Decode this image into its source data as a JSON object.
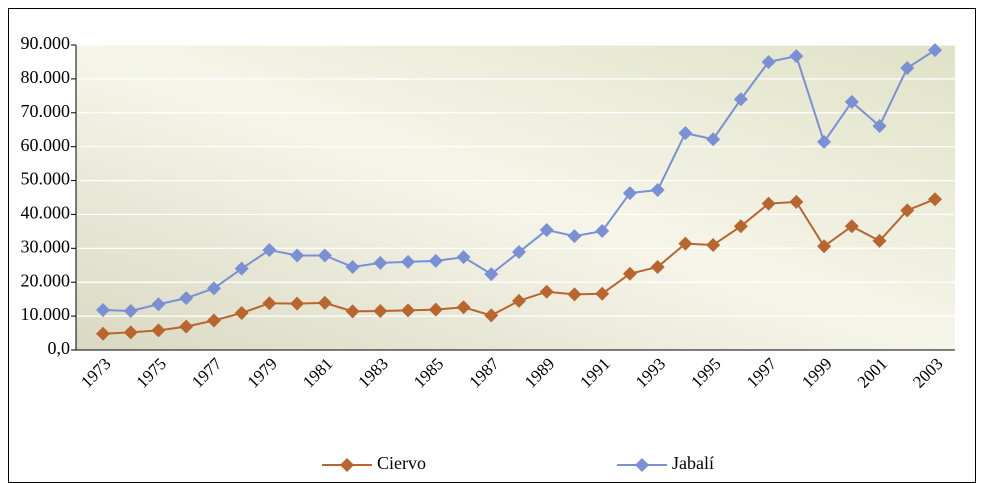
{
  "chart_data": {
    "type": "line",
    "categories": [
      "1973",
      null,
      "1975",
      null,
      "1977",
      null,
      "1979",
      null,
      "1981",
      null,
      "1983",
      null,
      "1985",
      null,
      "1987",
      null,
      "1989",
      null,
      "1991",
      null,
      "1993",
      null,
      "1995",
      null,
      "1997",
      null,
      "1999",
      null,
      "2001",
      null,
      "2003"
    ],
    "series": [
      {
        "name": "Ciervo",
        "color": "#b8652f",
        "values": [
          4800,
          5200,
          5800,
          6900,
          8700,
          10900,
          13800,
          13700,
          13900,
          11400,
          11500,
          11700,
          11900,
          12600,
          10200,
          14500,
          17200,
          16400,
          16600,
          22500,
          24500,
          31400,
          31000,
          36500,
          43200,
          43700,
          30600,
          36500,
          32200,
          41200,
          44500
        ]
      },
      {
        "name": "Jabalí",
        "color": "#7b90d4",
        "values": [
          11800,
          11500,
          13500,
          15300,
          18200,
          24000,
          29500,
          27900,
          27900,
          24500,
          25700,
          26000,
          26300,
          27400,
          22400,
          28900,
          35400,
          33600,
          35100,
          46300,
          47200,
          64000,
          62200,
          74000,
          85000,
          86700,
          61400,
          73200,
          66100,
          83200,
          88500
        ]
      }
    ],
    "ylim": [
      0,
      90000
    ],
    "yticks": [
      {
        "value": 0,
        "label": "0,0"
      },
      {
        "value": 10000,
        "label": "10.000"
      },
      {
        "value": 20000,
        "label": "20.000"
      },
      {
        "value": 30000,
        "label": "30.000"
      },
      {
        "value": 40000,
        "label": "40.000"
      },
      {
        "value": 50000,
        "label": "50.000"
      },
      {
        "value": 60000,
        "label": "60.000"
      },
      {
        "value": 70000,
        "label": "70.000"
      },
      {
        "value": 80000,
        "label": "80.000"
      },
      {
        "value": 90000,
        "label": "90.000"
      }
    ],
    "grid": true,
    "legend": "bottom"
  }
}
